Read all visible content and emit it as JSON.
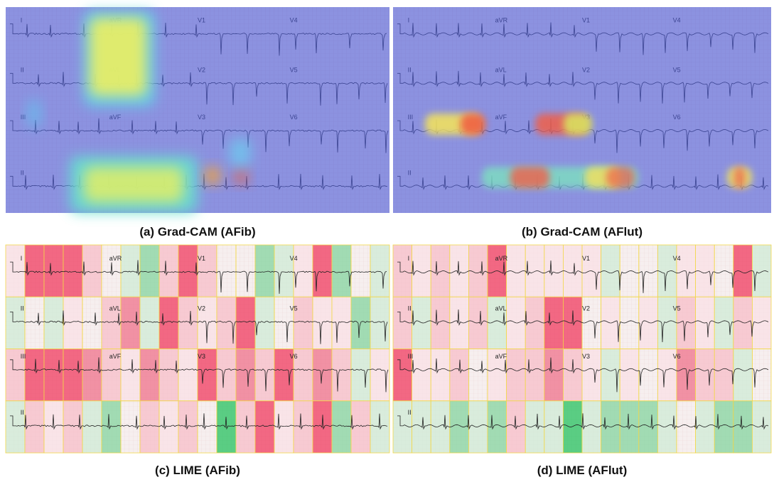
{
  "panels": [
    {
      "caption": "(a) Grad-CAM (AFib)"
    },
    {
      "caption": "(b) Grad-CAM (AFlut)"
    },
    {
      "caption": "(c) LIME (AFib)"
    },
    {
      "caption": "(d) LIME (AFlut)"
    }
  ],
  "leads": [
    [
      "I",
      "aVR",
      "V1",
      "V4"
    ],
    [
      "II",
      "aVL",
      "V2",
      "V5"
    ],
    [
      "III",
      "aVF",
      "V3",
      "V6"
    ],
    [
      "II"
    ]
  ]
}
